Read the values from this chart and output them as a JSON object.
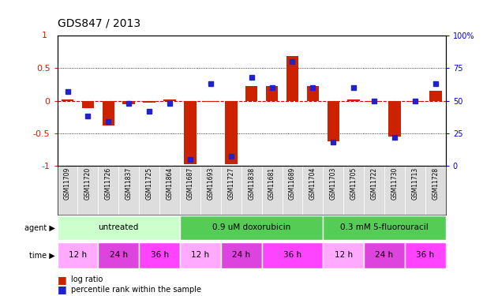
{
  "title": "GDS847 / 2013",
  "samples": [
    "GSM11709",
    "GSM11720",
    "GSM11726",
    "GSM11837",
    "GSM11725",
    "GSM11864",
    "GSM11687",
    "GSM11693",
    "GSM11727",
    "GSM11838",
    "GSM11681",
    "GSM11689",
    "GSM11704",
    "GSM11703",
    "GSM11705",
    "GSM11722",
    "GSM11730",
    "GSM11713",
    "GSM11728"
  ],
  "log_ratio": [
    0.02,
    -0.12,
    -0.38,
    -0.05,
    -0.03,
    0.02,
    -0.97,
    -0.02,
    -0.97,
    0.22,
    0.22,
    0.68,
    0.22,
    -0.62,
    0.02,
    -0.02,
    -0.55,
    -0.02,
    0.15
  ],
  "percentile_rank": [
    57,
    38,
    34,
    48,
    42,
    48,
    5,
    63,
    7,
    68,
    60,
    80,
    60,
    18,
    60,
    50,
    22,
    50,
    63
  ],
  "agent_groups": [
    {
      "label": "untreated",
      "start": 0,
      "end": 6,
      "color": "#ccffcc"
    },
    {
      "label": "0.9 uM doxorubicin",
      "start": 6,
      "end": 13,
      "color": "#55cc55"
    },
    {
      "label": "0.3 mM 5-fluorouracil",
      "start": 13,
      "end": 19,
      "color": "#55cc55"
    }
  ],
  "time_groups": [
    {
      "label": "12 h",
      "start": 0,
      "end": 2,
      "color": "#ffaaff"
    },
    {
      "label": "24 h",
      "start": 2,
      "end": 4,
      "color": "#dd44dd"
    },
    {
      "label": "36 h",
      "start": 4,
      "end": 6,
      "color": "#ff44ff"
    },
    {
      "label": "12 h",
      "start": 6,
      "end": 8,
      "color": "#ffaaff"
    },
    {
      "label": "24 h",
      "start": 8,
      "end": 10,
      "color": "#dd44dd"
    },
    {
      "label": "36 h",
      "start": 10,
      "end": 13,
      "color": "#ff44ff"
    },
    {
      "label": "12 h",
      "start": 13,
      "end": 15,
      "color": "#ffaaff"
    },
    {
      "label": "24 h",
      "start": 15,
      "end": 17,
      "color": "#dd44dd"
    },
    {
      "label": "36 h",
      "start": 17,
      "end": 19,
      "color": "#ff44ff"
    }
  ],
  "bar_color": "#cc2200",
  "dot_color": "#2222cc",
  "zero_line_color": "#cc0000",
  "ylim": [
    -1.0,
    1.0
  ],
  "y2lim": [
    0,
    100
  ],
  "yticks": [
    -1.0,
    -0.5,
    0.0,
    0.5
  ],
  "ytick_labels": [
    "-1",
    "-0.5",
    "0",
    "0.5"
  ],
  "y2ticks": [
    0,
    25,
    50,
    75,
    100
  ],
  "y2tick_labels": [
    "0",
    "25",
    "50",
    "75",
    "100%"
  ],
  "sample_bg": "#cccccc",
  "background_color": "#ffffff"
}
